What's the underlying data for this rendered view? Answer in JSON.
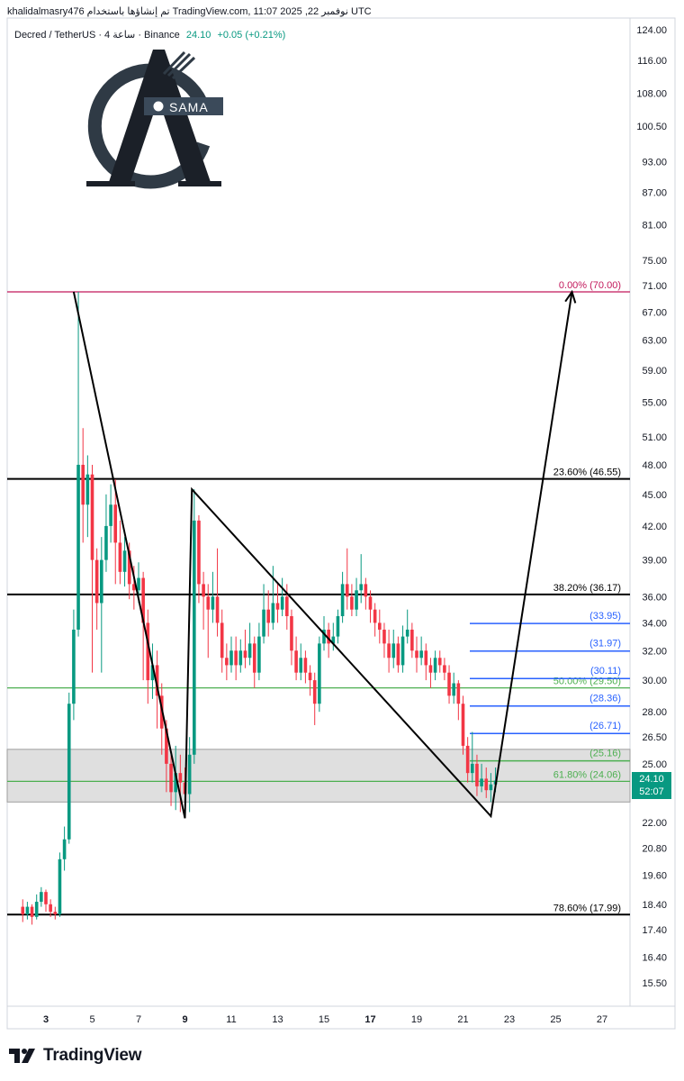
{
  "header": {
    "caption": "khalidalmasry476 تم إنشاؤها باستخدام TradingView.com, 11:07 2025 ,22 نوفمبر UTC",
    "symbol_desc": "Decred / TetherUS · 4 ساعة · Binance",
    "last_price": "24.10",
    "change": "+0.05 (+0.21%)"
  },
  "logo": {
    "text": "SAMA",
    "letter": "A"
  },
  "price_tag": {
    "price": "24.10",
    "countdown": "52:07"
  },
  "footer": {
    "brand": "TradingView"
  },
  "colors": {
    "up": "#089981",
    "down": "#f23645",
    "fib_top": "#c2185b",
    "fib_black": "#000000",
    "fib_green": "#4caf50",
    "fib_blue": "#2962ff",
    "zone": "#d9d9d9"
  },
  "chart_data": {
    "type": "candlestick",
    "price_scale": "log",
    "y_axis_ticks": [
      "124.00",
      "116.00",
      "108.00",
      "100.50",
      "93.00",
      "87.00",
      "81.00",
      "75.00",
      "71.00",
      "67.00",
      "63.00",
      "59.00",
      "55.00",
      "51.00",
      "48.00",
      "45.00",
      "42.00",
      "39.00",
      "36.00",
      "34.00",
      "32.00",
      "30.00",
      "28.00",
      "26.50",
      "25.00",
      "22.00",
      "20.80",
      "19.60",
      "18.40",
      "17.40",
      "16.40",
      "15.50"
    ],
    "x_axis_ticks": [
      "3",
      "5",
      "7",
      "9",
      "11",
      "13",
      "15",
      "17",
      "19",
      "21",
      "23",
      "25",
      "27"
    ],
    "fib_levels": [
      {
        "label": "0.00% (70.00)",
        "price": 70.0,
        "style": "fib_top"
      },
      {
        "label": "23.60% (46.55)",
        "price": 46.55,
        "style": "fib_black"
      },
      {
        "label": "38.20% (36.17)",
        "price": 36.17,
        "style": "fib_black"
      },
      {
        "label": "50.00% (29.50)",
        "price": 29.5,
        "style": "fib_green"
      },
      {
        "label": "61.80% (24.06)",
        "price": 24.06,
        "style": "fib_green"
      },
      {
        "label": "78.60% (17.99)",
        "price": 17.99,
        "style": "fib_black"
      }
    ],
    "target_levels": [
      {
        "label": "(33.95)",
        "price": 33.95,
        "style": "fib_blue"
      },
      {
        "label": "(31.97)",
        "price": 31.97,
        "style": "fib_blue"
      },
      {
        "label": "(30.11)",
        "price": 30.11,
        "style": "fib_blue"
      },
      {
        "label": "(28.36)",
        "price": 28.36,
        "style": "fib_blue"
      },
      {
        "label": "(26.71)",
        "price": 26.71,
        "style": "fib_blue"
      },
      {
        "label": "(25.16)",
        "price": 25.16,
        "style": "fib_green"
      }
    ],
    "support_zone": {
      "from": 23.0,
      "to": 25.8
    },
    "drawn_path": [
      {
        "day": 4.2,
        "price": 70.0
      },
      {
        "day": 9.0,
        "price": 22.2
      },
      {
        "day": 9.3,
        "price": 45.5
      },
      {
        "day": 22.2,
        "price": 22.3
      },
      {
        "day": 25.7,
        "price": 70.0
      }
    ],
    "candles": [
      {
        "d": 2.0,
        "o": 18.3,
        "c": 18.0,
        "h": 18.6,
        "l": 17.7
      },
      {
        "d": 2.2,
        "o": 18.0,
        "c": 18.3,
        "h": 18.5,
        "l": 17.8
      },
      {
        "d": 2.4,
        "o": 18.3,
        "c": 17.9,
        "h": 18.4,
        "l": 17.6
      },
      {
        "d": 2.6,
        "o": 17.9,
        "c": 18.5,
        "h": 18.8,
        "l": 17.8
      },
      {
        "d": 2.8,
        "o": 18.5,
        "c": 18.9,
        "h": 19.1,
        "l": 18.3
      },
      {
        "d": 3.0,
        "o": 18.9,
        "c": 18.4,
        "h": 19.0,
        "l": 18.1
      },
      {
        "d": 3.2,
        "o": 18.4,
        "c": 18.1,
        "h": 18.6,
        "l": 17.9
      },
      {
        "d": 3.4,
        "o": 18.1,
        "c": 18.0,
        "h": 18.3,
        "l": 17.8
      },
      {
        "d": 3.6,
        "o": 18.0,
        "c": 20.3,
        "h": 20.6,
        "l": 17.9
      },
      {
        "d": 3.8,
        "o": 20.3,
        "c": 21.2,
        "h": 21.8,
        "l": 19.8
      },
      {
        "d": 4.0,
        "o": 21.2,
        "c": 28.5,
        "h": 29.2,
        "l": 21.0
      },
      {
        "d": 4.2,
        "o": 28.5,
        "c": 33.5,
        "h": 35.0,
        "l": 27.5
      },
      {
        "d": 4.4,
        "o": 33.5,
        "c": 48.0,
        "h": 70.0,
        "l": 33.0
      },
      {
        "d": 4.6,
        "o": 48.0,
        "c": 44.0,
        "h": 52.0,
        "l": 40.5
      },
      {
        "d": 4.8,
        "o": 44.0,
        "c": 47.0,
        "h": 49.0,
        "l": 41.0
      },
      {
        "d": 5.0,
        "o": 47.0,
        "c": 39.0,
        "h": 48.0,
        "l": 30.5
      },
      {
        "d": 5.2,
        "o": 39.0,
        "c": 35.5,
        "h": 40.0,
        "l": 33.5
      },
      {
        "d": 5.4,
        "o": 35.5,
        "c": 39.0,
        "h": 41.0,
        "l": 30.5
      },
      {
        "d": 5.6,
        "o": 39.0,
        "c": 42.0,
        "h": 45.0,
        "l": 38.0
      },
      {
        "d": 5.8,
        "o": 42.0,
        "c": 44.0,
        "h": 46.0,
        "l": 40.5
      },
      {
        "d": 6.0,
        "o": 44.0,
        "c": 40.5,
        "h": 46.5,
        "l": 37.0
      },
      {
        "d": 6.2,
        "o": 40.5,
        "c": 38.0,
        "h": 42.5,
        "l": 37.0
      },
      {
        "d": 6.4,
        "o": 38.0,
        "c": 39.8,
        "h": 41.0,
        "l": 36.8
      },
      {
        "d": 6.6,
        "o": 39.8,
        "c": 37.0,
        "h": 40.5,
        "l": 35.8
      },
      {
        "d": 6.8,
        "o": 37.0,
        "c": 36.5,
        "h": 38.5,
        "l": 35.0
      },
      {
        "d": 7.0,
        "o": 36.5,
        "c": 37.5,
        "h": 38.8,
        "l": 35.5
      },
      {
        "d": 7.2,
        "o": 37.5,
        "c": 34.0,
        "h": 38.0,
        "l": 30.0
      },
      {
        "d": 7.4,
        "o": 34.0,
        "c": 30.0,
        "h": 35.0,
        "l": 28.5
      },
      {
        "d": 7.6,
        "o": 30.0,
        "c": 31.0,
        "h": 32.5,
        "l": 28.8
      },
      {
        "d": 7.8,
        "o": 31.0,
        "c": 29.0,
        "h": 32.0,
        "l": 27.0
      },
      {
        "d": 8.0,
        "o": 29.0,
        "c": 27.0,
        "h": 29.8,
        "l": 25.5
      },
      {
        "d": 8.2,
        "o": 27.0,
        "c": 25.0,
        "h": 27.5,
        "l": 23.5
      },
      {
        "d": 8.4,
        "o": 25.0,
        "c": 23.5,
        "h": 25.5,
        "l": 22.8
      },
      {
        "d": 8.6,
        "o": 23.5,
        "c": 24.5,
        "h": 26.0,
        "l": 22.6
      },
      {
        "d": 8.8,
        "o": 24.5,
        "c": 24.0,
        "h": 25.5,
        "l": 22.5
      },
      {
        "d": 9.0,
        "o": 24.0,
        "c": 23.4,
        "h": 24.8,
        "l": 22.3
      },
      {
        "d": 9.2,
        "o": 23.4,
        "c": 25.5,
        "h": 26.5,
        "l": 22.5
      },
      {
        "d": 9.4,
        "o": 25.5,
        "c": 42.5,
        "h": 45.5,
        "l": 25.0
      },
      {
        "d": 9.6,
        "o": 42.5,
        "c": 37.0,
        "h": 43.0,
        "l": 35.5
      },
      {
        "d": 9.8,
        "o": 37.0,
        "c": 36.0,
        "h": 38.0,
        "l": 33.5
      },
      {
        "d": 10.0,
        "o": 36.0,
        "c": 35.0,
        "h": 37.0,
        "l": 31.5
      },
      {
        "d": 10.2,
        "o": 35.0,
        "c": 36.0,
        "h": 38.0,
        "l": 34.0
      },
      {
        "d": 10.4,
        "o": 36.0,
        "c": 34.0,
        "h": 40.0,
        "l": 33.0
      },
      {
        "d": 10.6,
        "o": 34.0,
        "c": 31.5,
        "h": 35.0,
        "l": 30.5
      },
      {
        "d": 10.8,
        "o": 31.5,
        "c": 31.0,
        "h": 32.5,
        "l": 30.0
      },
      {
        "d": 11.0,
        "o": 31.0,
        "c": 32.0,
        "h": 33.0,
        "l": 30.5
      },
      {
        "d": 11.2,
        "o": 32.0,
        "c": 31.0,
        "h": 33.0,
        "l": 30.0
      },
      {
        "d": 11.4,
        "o": 31.0,
        "c": 32.0,
        "h": 32.8,
        "l": 30.5
      },
      {
        "d": 11.6,
        "o": 32.0,
        "c": 31.5,
        "h": 33.5,
        "l": 30.8
      },
      {
        "d": 11.8,
        "o": 31.5,
        "c": 32.5,
        "h": 34.0,
        "l": 31.0
      },
      {
        "d": 12.0,
        "o": 32.5,
        "c": 30.5,
        "h": 33.0,
        "l": 29.5
      },
      {
        "d": 12.2,
        "o": 30.5,
        "c": 33.0,
        "h": 34.0,
        "l": 30.0
      },
      {
        "d": 12.4,
        "o": 33.0,
        "c": 35.0,
        "h": 37.0,
        "l": 32.5
      },
      {
        "d": 12.6,
        "o": 35.0,
        "c": 34.0,
        "h": 36.5,
        "l": 33.0
      },
      {
        "d": 12.8,
        "o": 34.0,
        "c": 35.5,
        "h": 38.5,
        "l": 33.5
      },
      {
        "d": 13.0,
        "o": 35.5,
        "c": 35.0,
        "h": 37.0,
        "l": 34.0
      },
      {
        "d": 13.2,
        "o": 35.0,
        "c": 36.0,
        "h": 37.5,
        "l": 34.5
      },
      {
        "d": 13.4,
        "o": 36.0,
        "c": 34.5,
        "h": 37.0,
        "l": 33.5
      },
      {
        "d": 13.6,
        "o": 34.5,
        "c": 32.0,
        "h": 35.0,
        "l": 31.0
      },
      {
        "d": 13.8,
        "o": 32.0,
        "c": 30.5,
        "h": 33.0,
        "l": 30.0
      },
      {
        "d": 14.0,
        "o": 30.5,
        "c": 31.5,
        "h": 32.5,
        "l": 30.0
      },
      {
        "d": 14.2,
        "o": 31.5,
        "c": 30.5,
        "h": 32.0,
        "l": 29.8
      },
      {
        "d": 14.4,
        "o": 30.5,
        "c": 30.0,
        "h": 31.0,
        "l": 29.0
      },
      {
        "d": 14.6,
        "o": 30.0,
        "c": 28.5,
        "h": 30.5,
        "l": 27.2
      },
      {
        "d": 14.8,
        "o": 28.5,
        "c": 32.5,
        "h": 33.0,
        "l": 28.0
      },
      {
        "d": 15.0,
        "o": 32.5,
        "c": 33.5,
        "h": 34.5,
        "l": 32.0
      },
      {
        "d": 15.2,
        "o": 33.5,
        "c": 32.5,
        "h": 34.0,
        "l": 31.5
      },
      {
        "d": 15.4,
        "o": 32.5,
        "c": 33.0,
        "h": 34.0,
        "l": 32.0
      },
      {
        "d": 15.6,
        "o": 33.0,
        "c": 34.5,
        "h": 35.0,
        "l": 32.5
      },
      {
        "d": 15.8,
        "o": 34.5,
        "c": 37.0,
        "h": 38.0,
        "l": 34.0
      },
      {
        "d": 16.0,
        "o": 37.0,
        "c": 36.0,
        "h": 40.0,
        "l": 35.0
      },
      {
        "d": 16.2,
        "o": 36.0,
        "c": 35.0,
        "h": 37.0,
        "l": 34.5
      },
      {
        "d": 16.4,
        "o": 35.0,
        "c": 36.5,
        "h": 37.5,
        "l": 34.5
      },
      {
        "d": 16.6,
        "o": 36.5,
        "c": 37.0,
        "h": 39.5,
        "l": 35.5
      },
      {
        "d": 16.8,
        "o": 37.0,
        "c": 36.0,
        "h": 37.5,
        "l": 35.0
      },
      {
        "d": 17.0,
        "o": 36.0,
        "c": 35.0,
        "h": 36.5,
        "l": 34.0
      },
      {
        "d": 17.2,
        "o": 35.0,
        "c": 34.0,
        "h": 35.5,
        "l": 33.0
      },
      {
        "d": 17.4,
        "o": 34.0,
        "c": 33.5,
        "h": 35.0,
        "l": 32.5
      },
      {
        "d": 17.6,
        "o": 33.5,
        "c": 32.5,
        "h": 34.0,
        "l": 31.5
      },
      {
        "d": 17.8,
        "o": 32.5,
        "c": 31.5,
        "h": 33.5,
        "l": 30.5
      },
      {
        "d": 18.0,
        "o": 31.5,
        "c": 32.5,
        "h": 33.5,
        "l": 30.8
      },
      {
        "d": 18.2,
        "o": 32.5,
        "c": 31.0,
        "h": 33.0,
        "l": 30.5
      },
      {
        "d": 18.4,
        "o": 31.0,
        "c": 33.0,
        "h": 33.8,
        "l": 30.5
      },
      {
        "d": 18.6,
        "o": 33.0,
        "c": 33.5,
        "h": 35.0,
        "l": 32.5
      },
      {
        "d": 18.8,
        "o": 33.5,
        "c": 32.0,
        "h": 34.0,
        "l": 31.5
      },
      {
        "d": 19.0,
        "o": 32.0,
        "c": 31.5,
        "h": 33.0,
        "l": 30.5
      },
      {
        "d": 19.2,
        "o": 31.5,
        "c": 32.0,
        "h": 33.0,
        "l": 31.0
      },
      {
        "d": 19.4,
        "o": 32.0,
        "c": 31.0,
        "h": 32.5,
        "l": 30.0
      },
      {
        "d": 19.6,
        "o": 31.0,
        "c": 30.5,
        "h": 31.5,
        "l": 29.5
      },
      {
        "d": 19.8,
        "o": 30.5,
        "c": 31.5,
        "h": 32.0,
        "l": 30.0
      },
      {
        "d": 20.0,
        "o": 31.5,
        "c": 31.0,
        "h": 32.0,
        "l": 30.5
      },
      {
        "d": 20.2,
        "o": 31.0,
        "c": 30.5,
        "h": 31.5,
        "l": 30.0
      },
      {
        "d": 20.4,
        "o": 30.5,
        "c": 29.0,
        "h": 31.0,
        "l": 28.5
      },
      {
        "d": 20.6,
        "o": 29.0,
        "c": 29.8,
        "h": 30.5,
        "l": 28.5
      },
      {
        "d": 20.8,
        "o": 29.8,
        "c": 28.5,
        "h": 30.0,
        "l": 27.5
      },
      {
        "d": 21.0,
        "o": 28.5,
        "c": 26.0,
        "h": 29.0,
        "l": 25.5
      },
      {
        "d": 21.2,
        "o": 26.0,
        "c": 24.5,
        "h": 26.5,
        "l": 24.0
      },
      {
        "d": 21.4,
        "o": 24.5,
        "c": 25.0,
        "h": 26.8,
        "l": 24.0
      },
      {
        "d": 21.6,
        "o": 25.0,
        "c": 23.8,
        "h": 25.5,
        "l": 23.3
      },
      {
        "d": 21.8,
        "o": 23.8,
        "c": 24.2,
        "h": 25.0,
        "l": 23.5
      },
      {
        "d": 22.0,
        "o": 24.2,
        "c": 23.6,
        "h": 24.8,
        "l": 23.2
      },
      {
        "d": 22.2,
        "o": 23.6,
        "c": 23.9,
        "h": 24.5,
        "l": 23.0
      },
      {
        "d": 22.4,
        "o": 23.9,
        "c": 24.1,
        "h": 24.8,
        "l": 23.5
      }
    ]
  }
}
